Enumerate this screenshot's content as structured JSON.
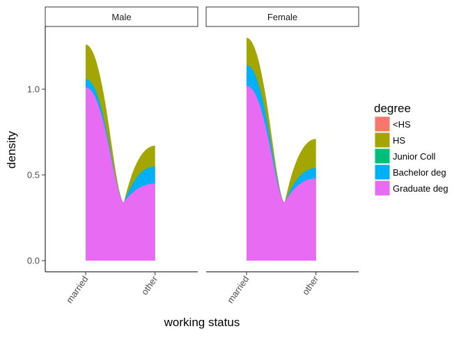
{
  "chart_data": {
    "type": "area",
    "subtype": "stacked-density-faceted",
    "facets": [
      "Male",
      "Female"
    ],
    "x": [
      "married",
      "other"
    ],
    "xlabel": "working status",
    "ylabel": "density",
    "ylim": [
      0,
      1.35
    ],
    "yticks": [
      0.0,
      0.5,
      1.0
    ],
    "ytick_labels": [
      "0.0",
      "0.5",
      "1.0"
    ],
    "legend": {
      "title": "degree",
      "position": "right",
      "entries": [
        "<HS",
        "HS",
        "Junior Coll",
        "Bachelor deg",
        "Graduate deg"
      ]
    },
    "series": [
      {
        "name": "<HS",
        "color": "#F8766D",
        "values": {
          "Male": [
            0,
            0
          ],
          "Female": [
            0,
            0
          ]
        }
      },
      {
        "name": "HS",
        "color": "#A3A500",
        "values": {
          "Male": [
            0.2,
            0.12
          ],
          "Female": [
            0.16,
            0.17
          ]
        }
      },
      {
        "name": "Junior Coll",
        "color": "#00BF7D",
        "values": {
          "Male": [
            0,
            0
          ],
          "Female": [
            0,
            0
          ]
        }
      },
      {
        "name": "Bachelor deg",
        "color": "#00B0F6",
        "values": {
          "Male": [
            0.05,
            0.1
          ],
          "Female": [
            0.12,
            0.06
          ]
        }
      },
      {
        "name": "Graduate deg",
        "color": "#E76BF3",
        "values": {
          "Male": [
            1.01,
            0.45
          ],
          "Female": [
            1.02,
            0.48
          ]
        }
      }
    ]
  }
}
